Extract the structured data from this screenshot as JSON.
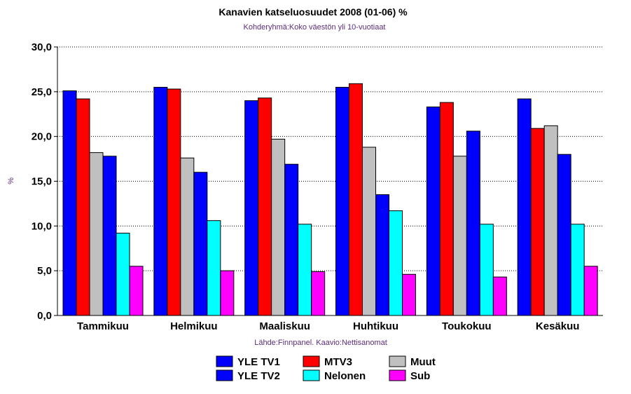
{
  "chart_data": {
    "type": "bar",
    "title": "Kanavien katseluosuudet 2008 (01-06) %",
    "subtitle": "Kohderyhmä:Koko väestön yli 10-vuotiaat",
    "source": "Lähde:Finnpanel. Kaavio:Nettisanomat",
    "xlabel": "",
    "ylabel": "%",
    "ylim": [
      0,
      30
    ],
    "yticks": [
      "0,0",
      "5,0",
      "10,0",
      "15,0",
      "20,0",
      "25,0",
      "30,0"
    ],
    "categories": [
      "Tammikuu",
      "Helmikuu",
      "Maaliskuu",
      "Huhtikuu",
      "Toukokuu",
      "Kesäkuu"
    ],
    "series": [
      {
        "name": "YLE TV1",
        "color": "#0000ff",
        "values": [
          25.1,
          25.5,
          24.0,
          25.5,
          23.3,
          24.2
        ]
      },
      {
        "name": "MTV3",
        "color": "#ff0000",
        "values": [
          24.2,
          25.3,
          24.3,
          25.9,
          23.8,
          20.9
        ]
      },
      {
        "name": "Muut",
        "color": "#c0c0c0",
        "values": [
          18.2,
          17.6,
          19.7,
          18.8,
          17.8,
          21.2
        ]
      },
      {
        "name": "YLE TV2",
        "color": "#0000ff",
        "values": [
          17.8,
          16.0,
          16.9,
          13.5,
          20.6,
          18.0
        ]
      },
      {
        "name": "Nelonen",
        "color": "#00ffff",
        "values": [
          9.2,
          10.6,
          10.2,
          11.7,
          10.2,
          10.2
        ]
      },
      {
        "name": "Sub",
        "color": "#ff00ff",
        "values": [
          5.5,
          5.0,
          4.9,
          4.6,
          4.3,
          5.5
        ]
      }
    ],
    "legend_order": [
      "YLE TV1",
      "MTV3",
      "Muut",
      "YLE TV2",
      "Nelonen",
      "Sub"
    ],
    "grid": true,
    "legend_position": "bottom-center"
  }
}
